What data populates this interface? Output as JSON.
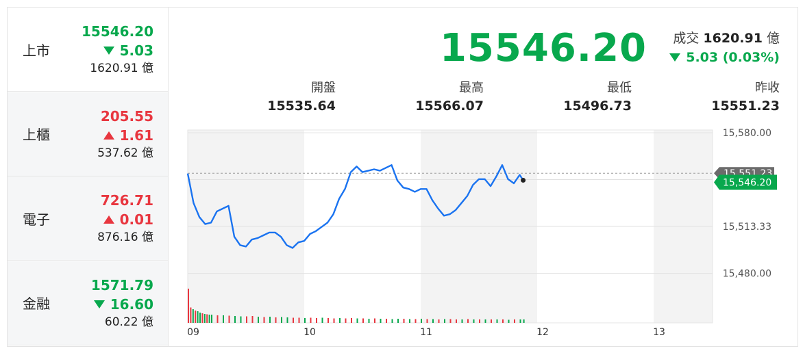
{
  "markets": [
    {
      "name": "上市",
      "price": "15546.20",
      "change": "5.03",
      "direction": "down",
      "volume": "1620.91",
      "unit": "億",
      "active": true
    },
    {
      "name": "上櫃",
      "price": "205.55",
      "change": "1.61",
      "direction": "up",
      "volume": "537.62",
      "unit": "億",
      "active": false
    },
    {
      "name": "電子",
      "price": "726.71",
      "change": "0.01",
      "direction": "up",
      "volume": "876.16",
      "unit": "億",
      "active": false
    },
    {
      "name": "金融",
      "price": "1571.79",
      "change": "16.60",
      "direction": "down",
      "volume": "60.22",
      "unit": "億",
      "active": false
    }
  ],
  "header": {
    "price": "15546.20",
    "turnover_label": "成交",
    "turnover_value": "1620.91",
    "turnover_unit": "億",
    "change_text": "5.03 (0.03%)"
  },
  "stats": [
    {
      "label": "開盤",
      "value": "15535.64"
    },
    {
      "label": "最高",
      "value": "15566.07"
    },
    {
      "label": "最低",
      "value": "15496.73"
    },
    {
      "label": "昨收",
      "value": "15551.23"
    }
  ],
  "colors": {
    "up": "#e8363f",
    "down": "#08a84d",
    "line": "#1a73f0",
    "shade": "#f3f3f3"
  },
  "chart_data": {
    "type": "line",
    "x_ticks": [
      "09",
      "10",
      "11",
      "12",
      "13"
    ],
    "y_ticks": [
      "15,580.00",
      "15,513.33",
      "15,480.00"
    ],
    "ylim": [
      15470,
      15582
    ],
    "xlim": [
      9.0,
      13.5
    ],
    "prev_close": 15551.23,
    "last_label": "15,546.20",
    "prev_close_label": "15,551.23",
    "series": [
      {
        "x": [
          9.0,
          9.05,
          9.1,
          9.15,
          9.2,
          9.25,
          9.3,
          9.35,
          9.4,
          9.45,
          9.5,
          9.55,
          9.6,
          9.65,
          9.7,
          9.75,
          9.8,
          9.85,
          9.9,
          9.95,
          10.0,
          10.05,
          10.1,
          10.15,
          10.2,
          10.25,
          10.3,
          10.35,
          10.4,
          10.45,
          10.5,
          10.55,
          10.6,
          10.65,
          10.7,
          10.75,
          10.8,
          10.85,
          10.9,
          10.95,
          11.0,
          11.05,
          11.1,
          11.15,
          11.2,
          11.25,
          11.3,
          11.35,
          11.4,
          11.45,
          11.5,
          11.55,
          11.6,
          11.65,
          11.7,
          11.75,
          11.8,
          11.85,
          11.88
        ],
        "y": [
          15551,
          15530,
          15520,
          15515,
          15516,
          15524,
          15526,
          15528,
          15506,
          15500,
          15499,
          15504,
          15505,
          15507,
          15509,
          15509,
          15506,
          15500,
          15498,
          15502,
          15503,
          15508,
          15510,
          15513,
          15516,
          15522,
          15533,
          15540,
          15552,
          15556,
          15552,
          15553,
          15554,
          15553,
          15555,
          15557,
          15546,
          15541,
          15540,
          15538,
          15540,
          15540,
          15532,
          15526,
          15521,
          15522,
          15525,
          15530,
          15535,
          15543,
          15547,
          15547,
          15542,
          15549,
          15557,
          15547,
          15544,
          15550,
          15546.2
        ]
      }
    ],
    "volume": {
      "x": [
        9.0,
        9.02,
        9.04,
        9.06,
        9.08,
        9.1,
        9.12,
        9.14,
        9.16,
        9.18,
        9.2,
        9.25,
        9.3,
        9.35,
        9.4,
        9.45,
        9.5,
        9.55,
        9.6,
        9.65,
        9.7,
        9.75,
        9.8,
        9.85,
        9.9,
        9.95,
        10.0,
        10.05,
        10.1,
        10.15,
        10.2,
        10.25,
        10.3,
        10.35,
        10.4,
        10.45,
        10.5,
        10.55,
        10.6,
        10.65,
        10.7,
        10.75,
        10.8,
        10.85,
        10.9,
        10.95,
        11.0,
        11.05,
        11.1,
        11.15,
        11.2,
        11.25,
        11.3,
        11.35,
        11.4,
        11.45,
        11.5,
        11.55,
        11.6,
        11.65,
        11.7,
        11.75,
        11.8,
        11.85,
        11.88
      ],
      "values": [
        100,
        45,
        40,
        36,
        34,
        30,
        28,
        26,
        25,
        24,
        24,
        22,
        22,
        21,
        20,
        19,
        19,
        20,
        18,
        17,
        18,
        16,
        17,
        16,
        15,
        15,
        14,
        15,
        14,
        15,
        14,
        13,
        14,
        13,
        14,
        13,
        13,
        12,
        13,
        12,
        12,
        11,
        12,
        12,
        11,
        11,
        12,
        11,
        11,
        10,
        11,
        11,
        10,
        10,
        11,
        10,
        10,
        10,
        10,
        10,
        10,
        9,
        10,
        10,
        10
      ],
      "directions": [
        "up",
        "up",
        "down",
        "up",
        "down",
        "down",
        "up",
        "down",
        "up",
        "down",
        "down",
        "up",
        "down",
        "up",
        "down",
        "down",
        "up",
        "up",
        "down",
        "up",
        "down",
        "up",
        "down",
        "down",
        "up",
        "up",
        "down",
        "up",
        "up",
        "down",
        "up",
        "up",
        "down",
        "up",
        "up",
        "down",
        "up",
        "down",
        "up",
        "down",
        "up",
        "down",
        "down",
        "up",
        "down",
        "up",
        "down",
        "up",
        "down",
        "up",
        "down",
        "up",
        "up",
        "down",
        "up",
        "down",
        "up",
        "down",
        "up",
        "down",
        "up",
        "down",
        "up",
        "down",
        "down"
      ]
    }
  }
}
